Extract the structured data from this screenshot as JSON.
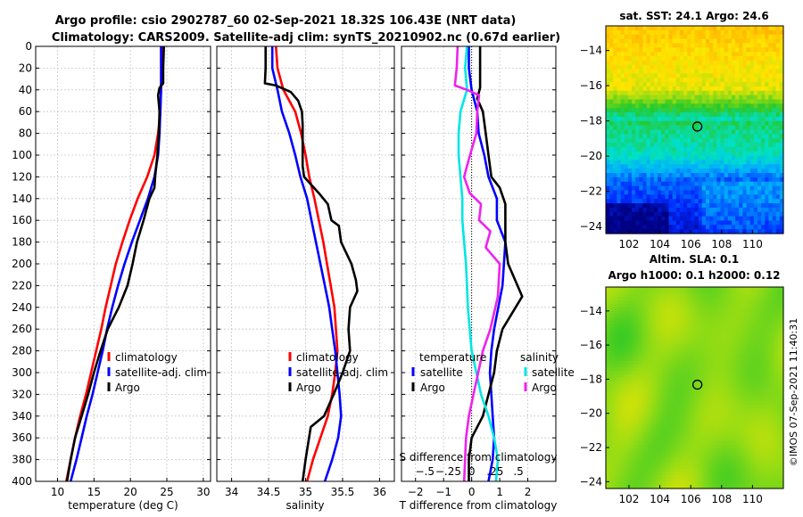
{
  "header": {
    "title_line1": "Argo profile: csio 2902787_60 02-Sep-2021 18.32S 106.43E (NRT data)",
    "title_line2": "Climatology: CARS2009. Satellite-adj clim: synTS_20210902.nc (0.67d earlier)"
  },
  "colors": {
    "climatology": "#ff0000",
    "satellite": "#0000ff",
    "argo": "#000000",
    "sal_satellite": "#00e5e5",
    "sal_argo": "#ee22ee"
  },
  "chart_data": [
    {
      "id": "temperature-profile",
      "type": "line",
      "xlabel": "temperature (deg C)",
      "ylabel": "",
      "xlim": [
        7,
        31
      ],
      "ylim": [
        0,
        400
      ],
      "y_reversed": true,
      "xticks": [
        10,
        15,
        20,
        25,
        30
      ],
      "yticks": [
        0,
        20,
        40,
        60,
        80,
        100,
        120,
        140,
        160,
        180,
        200,
        220,
        240,
        260,
        280,
        300,
        320,
        340,
        360,
        380,
        400
      ],
      "legend": {
        "position": "lower-middle",
        "entries": [
          "climatology",
          "satellite-adj. clim",
          "Argo"
        ]
      },
      "series": [
        {
          "name": "climatology",
          "color": "#ff0000",
          "points": [
            [
              24.3,
              0
            ],
            [
              24.3,
              20
            ],
            [
              24.2,
              40
            ],
            [
              24.1,
              60
            ],
            [
              23.8,
              80
            ],
            [
              23.3,
              100
            ],
            [
              22.3,
              120
            ],
            [
              21.0,
              140
            ],
            [
              19.9,
              160
            ],
            [
              18.9,
              180
            ],
            [
              18.0,
              200
            ],
            [
              17.3,
              220
            ],
            [
              16.6,
              240
            ],
            [
              16.0,
              260
            ],
            [
              15.3,
              280
            ],
            [
              14.6,
              300
            ],
            [
              13.9,
              320
            ],
            [
              13.1,
              340
            ],
            [
              12.4,
              360
            ],
            [
              11.8,
              380
            ],
            [
              11.2,
              400
            ]
          ]
        },
        {
          "name": "satellite-adj. clim",
          "color": "#0000ff",
          "points": [
            [
              24.2,
              0
            ],
            [
              24.2,
              20
            ],
            [
              24.2,
              40
            ],
            [
              24.1,
              60
            ],
            [
              24.0,
              80
            ],
            [
              23.8,
              100
            ],
            [
              23.3,
              120
            ],
            [
              22.4,
              140
            ],
            [
              21.3,
              160
            ],
            [
              20.2,
              180
            ],
            [
              19.2,
              200
            ],
            [
              18.3,
              220
            ],
            [
              17.5,
              240
            ],
            [
              16.8,
              260
            ],
            [
              16.2,
              280
            ],
            [
              15.5,
              300
            ],
            [
              14.8,
              320
            ],
            [
              14.0,
              340
            ],
            [
              13.3,
              360
            ],
            [
              12.6,
              380
            ],
            [
              11.8,
              400
            ]
          ]
        },
        {
          "name": "Argo",
          "color": "#000000",
          "points": [
            [
              24.6,
              0
            ],
            [
              24.5,
              20
            ],
            [
              24.5,
              34
            ],
            [
              24.0,
              38
            ],
            [
              23.8,
              45
            ],
            [
              24.0,
              60
            ],
            [
              23.9,
              80
            ],
            [
              23.7,
              100
            ],
            [
              23.4,
              120
            ],
            [
              23.3,
              130
            ],
            [
              22.6,
              140
            ],
            [
              21.8,
              160
            ],
            [
              20.9,
              180
            ],
            [
              20.3,
              200
            ],
            [
              19.6,
              220
            ],
            [
              18.4,
              240
            ],
            [
              16.9,
              260
            ],
            [
              15.9,
              280
            ],
            [
              15.0,
              300
            ],
            [
              14.2,
              320
            ],
            [
              13.3,
              340
            ],
            [
              12.4,
              360
            ],
            [
              11.8,
              380
            ],
            [
              11.3,
              400
            ]
          ]
        }
      ]
    },
    {
      "id": "salinity-profile",
      "type": "line",
      "xlabel": "salinity",
      "xlim": [
        33.8,
        36.2
      ],
      "ylim": [
        0,
        400
      ],
      "y_reversed": true,
      "xticks": [
        34,
        34.5,
        35,
        35.5,
        36
      ],
      "legend": {
        "position": "lower-middle",
        "entries": [
          "climatology",
          "satellite-adj. clim",
          "Argo"
        ]
      },
      "series": [
        {
          "name": "climatology",
          "color": "#ff0000",
          "points": [
            [
              34.6,
              0
            ],
            [
              34.62,
              20
            ],
            [
              34.7,
              40
            ],
            [
              34.86,
              60
            ],
            [
              34.94,
              80
            ],
            [
              35.0,
              100
            ],
            [
              35.05,
              120
            ],
            [
              35.12,
              140
            ],
            [
              35.18,
              160
            ],
            [
              35.24,
              180
            ],
            [
              35.29,
              200
            ],
            [
              35.34,
              220
            ],
            [
              35.39,
              240
            ],
            [
              35.41,
              260
            ],
            [
              35.43,
              280
            ],
            [
              35.4,
              300
            ],
            [
              35.36,
              320
            ],
            [
              35.3,
              340
            ],
            [
              35.2,
              360
            ],
            [
              35.1,
              380
            ],
            [
              35.02,
              400
            ]
          ]
        },
        {
          "name": "satellite-adj. clim",
          "color": "#0000ff",
          "points": [
            [
              34.55,
              0
            ],
            [
              34.55,
              20
            ],
            [
              34.62,
              40
            ],
            [
              34.68,
              60
            ],
            [
              34.78,
              80
            ],
            [
              34.86,
              100
            ],
            [
              34.93,
              120
            ],
            [
              35.02,
              140
            ],
            [
              35.08,
              160
            ],
            [
              35.14,
              180
            ],
            [
              35.2,
              200
            ],
            [
              35.26,
              220
            ],
            [
              35.32,
              240
            ],
            [
              35.36,
              260
            ],
            [
              35.4,
              280
            ],
            [
              35.43,
              300
            ],
            [
              35.46,
              320
            ],
            [
              35.48,
              340
            ],
            [
              35.44,
              360
            ],
            [
              35.36,
              380
            ],
            [
              35.26,
              400
            ]
          ]
        },
        {
          "name": "Argo",
          "color": "#000000",
          "points": [
            [
              34.46,
              0
            ],
            [
              34.46,
              20
            ],
            [
              34.45,
              34
            ],
            [
              34.6,
              36
            ],
            [
              34.8,
              42
            ],
            [
              34.9,
              50
            ],
            [
              34.95,
              60
            ],
            [
              34.96,
              72
            ],
            [
              34.96,
              90
            ],
            [
              34.96,
              110
            ],
            [
              34.98,
              120
            ],
            [
              35.18,
              135
            ],
            [
              35.3,
              145
            ],
            [
              35.35,
              160
            ],
            [
              35.45,
              165
            ],
            [
              35.48,
              180
            ],
            [
              35.55,
              190
            ],
            [
              35.62,
              200
            ],
            [
              35.68,
              215
            ],
            [
              35.7,
              225
            ],
            [
              35.6,
              240
            ],
            [
              35.58,
              260
            ],
            [
              35.6,
              280
            ],
            [
              35.5,
              300
            ],
            [
              35.38,
              320
            ],
            [
              35.25,
              340
            ],
            [
              35.07,
              350
            ],
            [
              35.0,
              380
            ],
            [
              34.96,
              400
            ]
          ]
        }
      ]
    },
    {
      "id": "difference-profile",
      "type": "line",
      "xlabel": "T difference from climatology",
      "secondary_xlabel": "S difference from climatology",
      "xlim": [
        -2.5,
        3
      ],
      "ylim": [
        0,
        400
      ],
      "y_reversed": true,
      "xticks": [
        -2,
        -1,
        0,
        1,
        2
      ],
      "secondary_xlim": [
        -0.75,
        0.9
      ],
      "secondary_xticks": [
        -0.5,
        -0.25,
        0,
        0.25,
        0.5
      ],
      "legend": {
        "position": "lower-middle",
        "temperature_title": "temperature",
        "salinity_title": "salinity",
        "entries_temperature": [
          "satellite",
          "Argo"
        ],
        "entries_salinity": [
          "satellite",
          "Argo"
        ]
      },
      "series": [
        {
          "name": "T satellite",
          "color": "#0000ff",
          "points": [
            [
              -0.1,
              0
            ],
            [
              -0.1,
              20
            ],
            [
              0,
              40
            ],
            [
              0.2,
              60
            ],
            [
              0.25,
              80
            ],
            [
              0.45,
              100
            ],
            [
              0.6,
              120
            ],
            [
              0.9,
              140
            ],
            [
              0.9,
              160
            ],
            [
              1.2,
              180
            ],
            [
              1.15,
              200
            ],
            [
              1.1,
              220
            ],
            [
              0.95,
              240
            ],
            [
              0.8,
              260
            ],
            [
              0.7,
              280
            ],
            [
              0.65,
              300
            ],
            [
              0.7,
              320
            ],
            [
              0.75,
              340
            ],
            [
              0.8,
              360
            ],
            [
              0.75,
              380
            ],
            [
              0.6,
              400
            ]
          ]
        },
        {
          "name": "T Argo",
          "color": "#000000",
          "points": [
            [
              0.3,
              0
            ],
            [
              0.3,
              20
            ],
            [
              0.3,
              30
            ],
            [
              0.3,
              38
            ],
            [
              0.2,
              48
            ],
            [
              0.4,
              60
            ],
            [
              0.5,
              80
            ],
            [
              0.6,
              100
            ],
            [
              0.7,
              120
            ],
            [
              1.0,
              130
            ],
            [
              1.2,
              145
            ],
            [
              1.2,
              165
            ],
            [
              1.2,
              180
            ],
            [
              1.3,
              200
            ],
            [
              1.8,
              230
            ],
            [
              1.1,
              260
            ],
            [
              0.9,
              280
            ],
            [
              0.8,
              300
            ],
            [
              0.6,
              320
            ],
            [
              0.4,
              340
            ],
            [
              0.0,
              360
            ],
            [
              -0.1,
              380
            ],
            [
              -0.1,
              400
            ]
          ]
        },
        {
          "name": "S satellite",
          "color": "#00e5e5",
          "axis": "secondary",
          "points": [
            [
              -0.05,
              0
            ],
            [
              -0.07,
              20
            ],
            [
              -0.05,
              40
            ],
            [
              -0.12,
              60
            ],
            [
              -0.14,
              80
            ],
            [
              -0.14,
              100
            ],
            [
              -0.12,
              120
            ],
            [
              -0.1,
              140
            ],
            [
              -0.1,
              160
            ],
            [
              -0.08,
              180
            ],
            [
              -0.06,
              200
            ],
            [
              -0.05,
              220
            ],
            [
              -0.04,
              240
            ],
            [
              -0.02,
              260
            ],
            [
              0.0,
              280
            ],
            [
              0.05,
              300
            ],
            [
              0.1,
              320
            ],
            [
              0.18,
              340
            ],
            [
              0.24,
              360
            ],
            [
              0.28,
              380
            ],
            [
              0.26,
              400
            ]
          ]
        },
        {
          "name": "S Argo",
          "color": "#ee22ee",
          "axis": "secondary",
          "points": [
            [
              -0.15,
              0
            ],
            [
              -0.16,
              20
            ],
            [
              -0.18,
              36
            ],
            [
              -0.05,
              40
            ],
            [
              0.08,
              45
            ],
            [
              0.06,
              60
            ],
            [
              0.05,
              80
            ],
            [
              0.0,
              95
            ],
            [
              -0.05,
              110
            ],
            [
              -0.08,
              120
            ],
            [
              -0.02,
              135
            ],
            [
              0.1,
              145
            ],
            [
              0.08,
              160
            ],
            [
              0.2,
              170
            ],
            [
              0.15,
              185
            ],
            [
              0.3,
              200
            ],
            [
              0.28,
              230
            ],
            [
              0.2,
              260
            ],
            [
              0.12,
              280
            ],
            [
              0.07,
              300
            ],
            [
              0.02,
              320
            ],
            [
              -0.03,
              340
            ],
            [
              -0.06,
              360
            ],
            [
              -0.08,
              400
            ]
          ]
        }
      ]
    },
    {
      "id": "sst-map",
      "type": "heatmap",
      "title": "sat. SST: 24.1 Argo: 24.6",
      "xlim": [
        100.5,
        112
      ],
      "ylim": [
        -24.4,
        -12.6
      ],
      "xticks": [
        102,
        104,
        106,
        108,
        110
      ],
      "yticks": [
        -14,
        -16,
        -18,
        -20,
        -22,
        -24
      ],
      "argo_position": [
        106.43,
        -18.32
      ]
    },
    {
      "id": "sla-map",
      "type": "heatmap",
      "title_line1": "Altim. SLA: 0.1",
      "title_line2": "Argo h1000: 0.1 h2000: 0.12",
      "xlim": [
        100.5,
        112
      ],
      "ylim": [
        -24.4,
        -12.6
      ],
      "xticks": [
        102,
        104,
        106,
        108,
        110
      ],
      "yticks": [
        -14,
        -16,
        -18,
        -20,
        -22,
        -24
      ],
      "argo_position": [
        106.43,
        -18.32
      ]
    }
  ],
  "footer": {
    "credit": "©IMOS 07-Sep-2021 11:40:31"
  }
}
